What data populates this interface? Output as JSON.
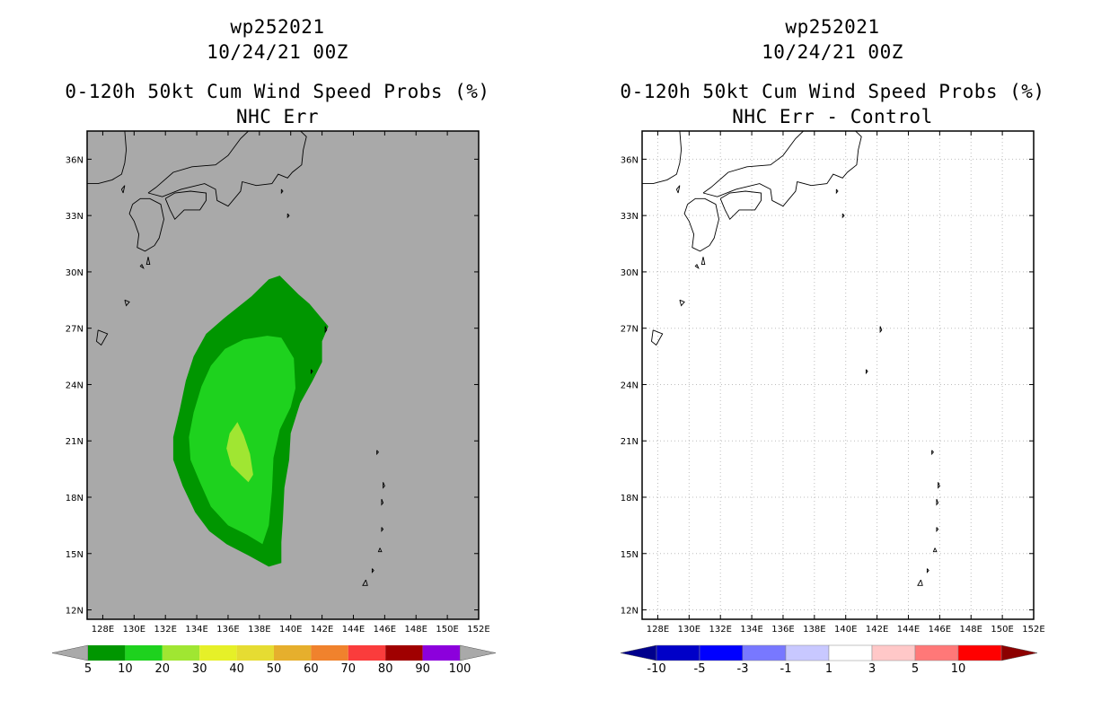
{
  "left_panel": {
    "title_line1": "wp252021",
    "title_line2": "10/24/21 00Z",
    "title_line3": "0-120h 50kt Cum Wind Speed Probs (%)",
    "title_line4": "NHC Err",
    "background_color": "#a9a9a9",
    "colorbar": {
      "labels": [
        "5",
        "10",
        "20",
        "30",
        "40",
        "50",
        "60",
        "70",
        "80",
        "90",
        "100"
      ],
      "colors": [
        "#009600",
        "#1ed21e",
        "#a0e632",
        "#e6f028",
        "#e6dc32",
        "#e6af2d",
        "#f0822d",
        "#fa3c3c",
        "#a00000",
        "#8c00dc"
      ],
      "under_color": "#a9a9a9",
      "over_color": "#a9a9a9"
    }
  },
  "right_panel": {
    "title_line1": "wp252021",
    "title_line2": "10/24/21 00Z",
    "title_line3": "0-120h 50kt Cum Wind Speed Probs (%)",
    "title_line4": "NHC Err - Control",
    "background_color": "#ffffff",
    "colorbar": {
      "labels": [
        "-10",
        "-5",
        "-3",
        "-1",
        "1",
        "3",
        "5",
        "10"
      ],
      "colors": [
        "#0000c8",
        "#0000ff",
        "#7878ff",
        "#c8c8ff",
        "#ffffff",
        "#ffc8c8",
        "#ff7878",
        "#ff0000"
      ],
      "under_color": "#00008c",
      "over_color": "#8c0000"
    }
  },
  "map": {
    "lat_labels": [
      "36N",
      "33N",
      "30N",
      "27N",
      "24N",
      "21N",
      "18N",
      "15N",
      "12N"
    ],
    "lat_values": [
      36,
      33,
      30,
      27,
      24,
      21,
      18,
      15,
      12
    ],
    "lon_labels": [
      "128E",
      "130E",
      "132E",
      "134E",
      "136E",
      "138E",
      "140E",
      "142E",
      "144E",
      "146E",
      "148E",
      "150E",
      "152E"
    ],
    "lon_values": [
      128,
      130,
      132,
      134,
      136,
      138,
      140,
      142,
      144,
      146,
      148,
      150,
      152
    ],
    "lon_range": [
      127,
      152
    ],
    "lat_range": [
      11.5,
      37.5
    ]
  },
  "probability_contours": [
    {
      "level": 5,
      "color": "#009600",
      "polygon": [
        [
          139.3,
          29.8
        ],
        [
          140.5,
          28.8
        ],
        [
          141.2,
          28.3
        ],
        [
          142.4,
          27.1
        ],
        [
          142.0,
          26.3
        ],
        [
          142.0,
          25.2
        ],
        [
          141.4,
          24.2
        ],
        [
          140.6,
          23.0
        ],
        [
          140.0,
          21.4
        ],
        [
          139.9,
          20.0
        ],
        [
          139.6,
          18.5
        ],
        [
          139.5,
          16.8
        ],
        [
          139.4,
          15.6
        ],
        [
          139.4,
          14.5
        ],
        [
          138.6,
          14.3
        ],
        [
          137.3,
          14.9
        ],
        [
          135.9,
          15.5
        ],
        [
          134.8,
          16.2
        ],
        [
          133.9,
          17.2
        ],
        [
          133.1,
          18.6
        ],
        [
          132.5,
          20.0
        ],
        [
          132.5,
          21.2
        ],
        [
          132.9,
          22.6
        ],
        [
          133.3,
          24.2
        ],
        [
          133.8,
          25.5
        ],
        [
          134.6,
          26.7
        ],
        [
          135.7,
          27.5
        ],
        [
          137.5,
          28.7
        ],
        [
          138.6,
          29.6
        ]
      ]
    },
    {
      "level": 10,
      "color": "#1ed21e",
      "polygon": [
        [
          138.5,
          26.6
        ],
        [
          139.4,
          26.5
        ],
        [
          140.2,
          25.4
        ],
        [
          140.3,
          23.8
        ],
        [
          140.0,
          22.8
        ],
        [
          139.3,
          21.6
        ],
        [
          138.9,
          20.1
        ],
        [
          138.8,
          18.3
        ],
        [
          138.6,
          16.5
        ],
        [
          138.2,
          15.5
        ],
        [
          137.2,
          16.0
        ],
        [
          136.0,
          16.5
        ],
        [
          134.9,
          17.5
        ],
        [
          134.2,
          18.8
        ],
        [
          133.6,
          20.0
        ],
        [
          133.5,
          21.2
        ],
        [
          133.8,
          22.5
        ],
        [
          134.3,
          23.9
        ],
        [
          134.9,
          25.0
        ],
        [
          135.8,
          25.9
        ],
        [
          137.0,
          26.4
        ]
      ]
    },
    {
      "level": 20,
      "color": "#a0e632",
      "polygon": [
        [
          136.6,
          22.0
        ],
        [
          137.0,
          21.3
        ],
        [
          137.4,
          20.3
        ],
        [
          137.6,
          19.2
        ],
        [
          137.3,
          18.8
        ],
        [
          136.8,
          19.2
        ],
        [
          136.2,
          19.7
        ],
        [
          135.9,
          20.6
        ],
        [
          136.1,
          21.4
        ]
      ]
    }
  ]
}
